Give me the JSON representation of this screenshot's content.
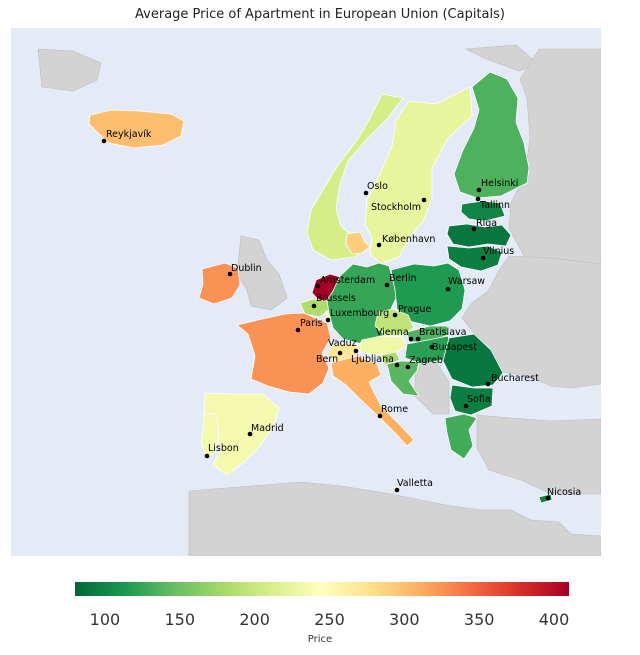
{
  "title": "Average Price of Apartment in European Union (Capitals)",
  "colorbar": {
    "label": "Price",
    "min": 80,
    "max": 410,
    "ticks": [
      "100",
      "150",
      "200",
      "250",
      "300",
      "350",
      "400"
    ],
    "tick_values": [
      100,
      150,
      200,
      250,
      300,
      350,
      400
    ],
    "colors": [
      "#006837",
      "#1a9850",
      "#66bd63",
      "#a6d96a",
      "#d9ef8b",
      "#ffffbf",
      "#fee08b",
      "#fdae61",
      "#f46d43",
      "#d73027",
      "#a50026"
    ]
  },
  "map_style": {
    "ocean": "#e5eaf7",
    "land": "#d3d3d3",
    "border": "#ffffff"
  },
  "countries": [
    {
      "name": "Iceland",
      "price": 300
    },
    {
      "name": "Norway",
      "price": 210
    },
    {
      "name": "Sweden",
      "price": 225
    },
    {
      "name": "Finland",
      "price": 135
    },
    {
      "name": "Estonia",
      "price": 100
    },
    {
      "name": "Latvia",
      "price": 90
    },
    {
      "name": "Lithuania",
      "price": 95
    },
    {
      "name": "Denmark",
      "price": 290
    },
    {
      "name": "Ireland",
      "price": 325
    },
    {
      "name": "Netherlands",
      "price": 410
    },
    {
      "name": "Belgium",
      "price": 185
    },
    {
      "name": "Luxembourg",
      "price": 250
    },
    {
      "name": "Germany",
      "price": 125
    },
    {
      "name": "Poland",
      "price": 115
    },
    {
      "name": "Czechia",
      "price": 195
    },
    {
      "name": "Slovakia",
      "price": 135
    },
    {
      "name": "Austria",
      "price": 230
    },
    {
      "name": "Hungary",
      "price": 120
    },
    {
      "name": "France",
      "price": 325
    },
    {
      "name": "Switzerland",
      "price": 270
    },
    {
      "name": "Liechtenstein",
      "price": 270
    },
    {
      "name": "Slovenia",
      "price": 180
    },
    {
      "name": "Croatia",
      "price": 140
    },
    {
      "name": "Romania",
      "price": 90
    },
    {
      "name": "Bulgaria",
      "price": 95
    },
    {
      "name": "Italy",
      "price": 310
    },
    {
      "name": "Spain",
      "price": 235
    },
    {
      "name": "Portugal",
      "price": 235
    },
    {
      "name": "Greece",
      "price": 130
    },
    {
      "name": "Malta",
      "price": 270
    },
    {
      "name": "Cyprus",
      "price": 100
    }
  ],
  "cities": [
    {
      "name": "Reykjavík"
    },
    {
      "name": "Oslo"
    },
    {
      "name": "Stockholm"
    },
    {
      "name": "Helsinki"
    },
    {
      "name": "Tallinn"
    },
    {
      "name": "Riga"
    },
    {
      "name": "Vilnius"
    },
    {
      "name": "København"
    },
    {
      "name": "Dublin"
    },
    {
      "name": "Amsterdam"
    },
    {
      "name": "Brussels"
    },
    {
      "name": "Luxembourg"
    },
    {
      "name": "Berlin"
    },
    {
      "name": "Warsaw"
    },
    {
      "name": "Prague"
    },
    {
      "name": "Paris"
    },
    {
      "name": "Vienna"
    },
    {
      "name": "Bratislava"
    },
    {
      "name": "Budapest"
    },
    {
      "name": "Vaduz"
    },
    {
      "name": "Bern"
    },
    {
      "name": "Ljubljana"
    },
    {
      "name": "Zagreb"
    },
    {
      "name": "Bucharest"
    },
    {
      "name": "Sofia"
    },
    {
      "name": "Madrid"
    },
    {
      "name": "Lisbon"
    },
    {
      "name": "Rome"
    },
    {
      "name": "Valletta"
    },
    {
      "name": "Nicosia"
    }
  ]
}
